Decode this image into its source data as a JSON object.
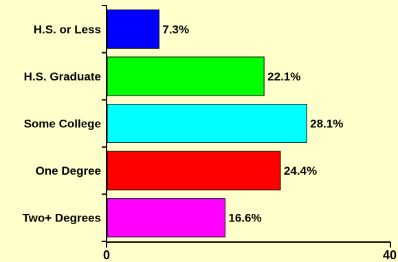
{
  "chart_data": {
    "type": "bar",
    "orientation": "horizontal",
    "categories": [
      "H.S. or Less",
      "H.S. Graduate",
      "Some College",
      "One Degree",
      "Two+ Degrees"
    ],
    "values": [
      7.3,
      22.1,
      28.1,
      24.4,
      16.6
    ],
    "value_labels": [
      "7.3%",
      "22.1%",
      "28.1%",
      "24.4%",
      "16.6%"
    ],
    "bar_colors": [
      "#0000ff",
      "#00ff00",
      "#00ffff",
      "#ff0000",
      "#ff00ff"
    ],
    "xlim": [
      0,
      40
    ],
    "x_ticks": [
      0,
      40
    ],
    "x_tick_labels": [
      "0",
      "40"
    ],
    "grid": false,
    "legend": "none",
    "title": "",
    "xlabel": "",
    "ylabel": ""
  },
  "colors": {
    "background": "#ffffcc",
    "axis": "#000000"
  }
}
